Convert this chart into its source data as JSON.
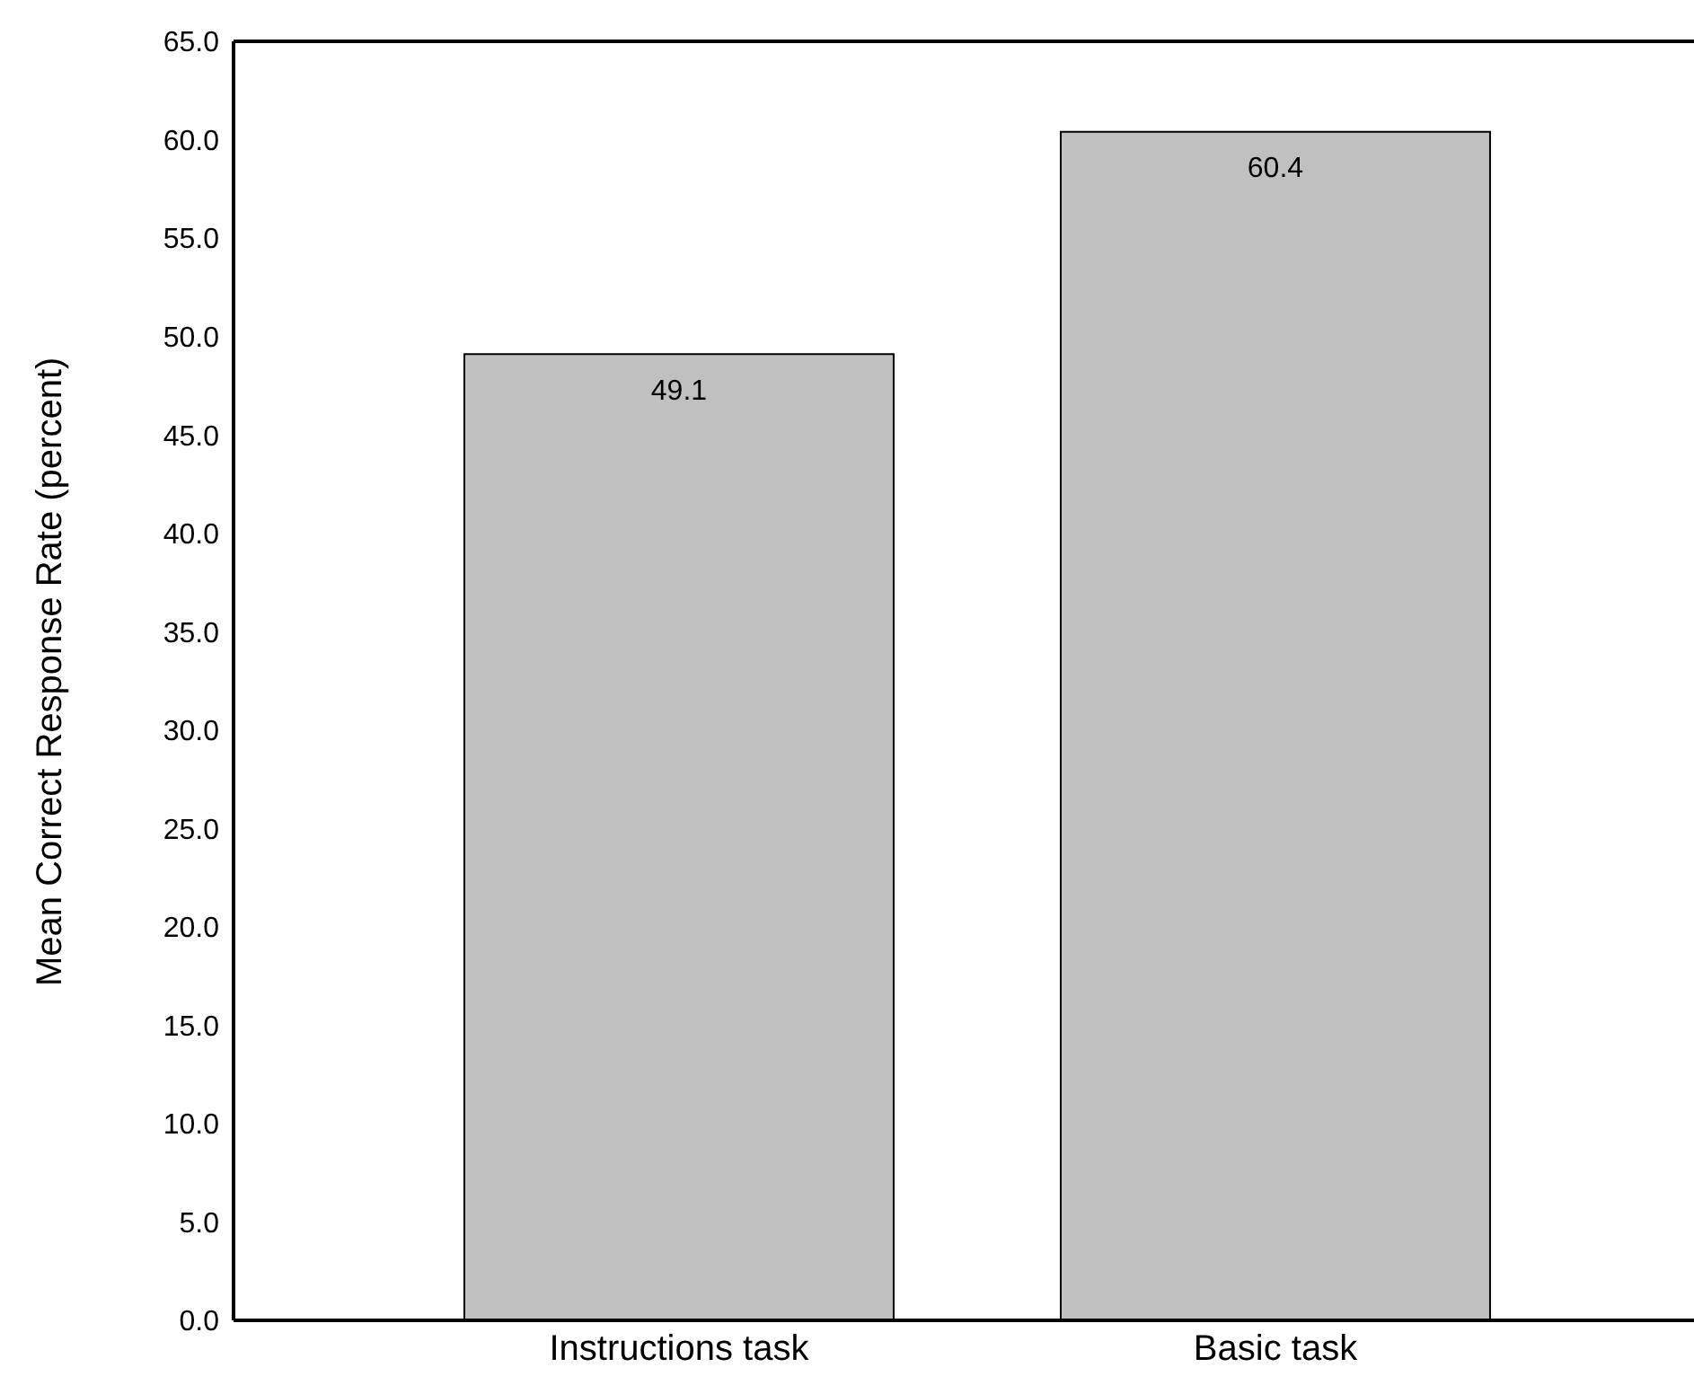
{
  "chart_data": {
    "type": "bar",
    "ylabel": "Mean Correct Response Rate (percent)",
    "categories": [
      "Instructions task",
      "Basic task"
    ],
    "values": [
      49.1,
      60.4
    ],
    "color": "#c0c0c0",
    "data_labels": true,
    "grid": false,
    "legend": false,
    "ylim": [
      0,
      65
    ],
    "yticks": [
      {
        "value": 0,
        "label": "0.0"
      },
      {
        "value": 5,
        "label": "5.0"
      },
      {
        "value": 10,
        "label": "10.0"
      },
      {
        "value": 15,
        "label": "15.0"
      },
      {
        "value": 20,
        "label": "20.0"
      },
      {
        "value": 25,
        "label": "25.0"
      },
      {
        "value": 30,
        "label": "30.0"
      },
      {
        "value": 35,
        "label": "35.0"
      },
      {
        "value": 40,
        "label": "40.0"
      },
      {
        "value": 45,
        "label": "45.0"
      },
      {
        "value": 50,
        "label": "50.0"
      },
      {
        "value": 55,
        "label": "55.0"
      },
      {
        "value": 60,
        "label": "60.0"
      },
      {
        "value": 65,
        "label": "65.0"
      }
    ]
  }
}
